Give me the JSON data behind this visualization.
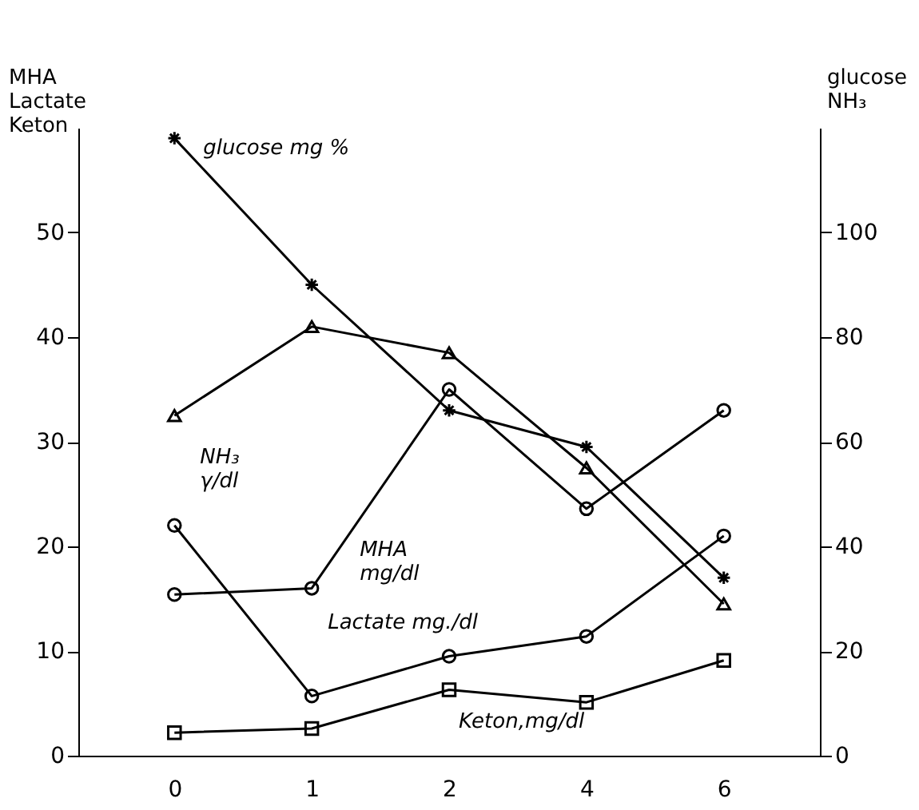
{
  "chart_data": {
    "type": "line",
    "ylabel": "MHA\nLactate\nKeton",
    "y2label": "glucose\nNH₃",
    "categories": [
      "0",
      "1",
      "2",
      "4",
      "6"
    ],
    "ylim": [
      0,
      60
    ],
    "yticks": [
      0,
      10,
      20,
      30,
      40,
      50
    ],
    "y2lim": [
      0,
      120
    ],
    "y2ticks": [
      0,
      20,
      40,
      60,
      80,
      100
    ],
    "grid": false,
    "series": [
      {
        "name": "glucose mg %",
        "color": "#000000",
        "axis": "y2",
        "marker": "cross",
        "values": [
          118,
          90,
          66,
          59,
          34
        ]
      },
      {
        "name": "NH₃\nγ/dl",
        "color": "#000000",
        "axis": "y2",
        "marker": "triangle",
        "values": [
          65,
          82,
          77,
          55,
          29
        ]
      },
      {
        "name": "MHA\nmg/dl",
        "color": "#000000",
        "axis": "y",
        "marker": "circle",
        "values": [
          15.4,
          16,
          35,
          23.6,
          33
        ]
      },
      {
        "name": "Lactate mg./dl",
        "color": "#000000",
        "axis": "y",
        "marker": "circle",
        "values": [
          22,
          5.7,
          9.5,
          11.4,
          21
        ]
      },
      {
        "name": "Keton,mg/dl",
        "color": "#000000",
        "axis": "y",
        "marker": "square",
        "values": [
          2.2,
          2.6,
          6.3,
          5.1,
          9.1
        ]
      }
    ]
  }
}
